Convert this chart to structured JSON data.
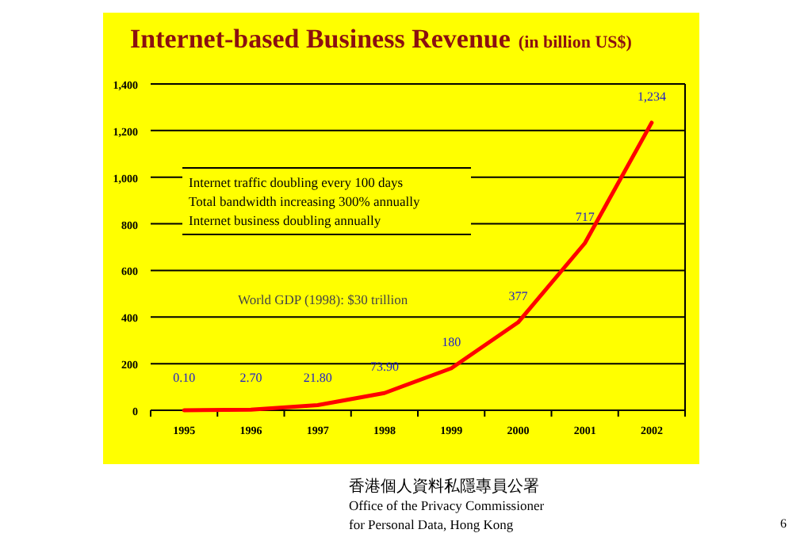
{
  "chart_data": {
    "type": "line",
    "title": "Internet-based Business Revenue",
    "subtitle": "(in billion US$)",
    "categories": [
      "1995",
      "1996",
      "1997",
      "1998",
      "1999",
      "2000",
      "2001",
      "2002"
    ],
    "series": [
      {
        "color": "#ff0000",
        "values": [
          0.1,
          2.7,
          21.8,
          73.9,
          180,
          377,
          717,
          1234
        ],
        "value_labels": [
          "0.10",
          "2.70",
          "21.80",
          "73.90",
          "180",
          "377",
          "717",
          "1,234"
        ]
      }
    ],
    "ylim": [
      0,
      1400
    ],
    "yticks": [
      0,
      200,
      400,
      600,
      800,
      {
        "value": 1000,
        "label": "1,000"
      },
      {
        "value": 1200,
        "label": "1,200"
      },
      {
        "value": 1400,
        "label": "1,400"
      }
    ],
    "grid": "y",
    "marker": "none",
    "line_style": "solid",
    "annotations": [
      "Internet traffic doubling every 100 days",
      "Total bandwidth increasing 300% annually",
      "Internet business doubling annually",
      "World GDP (1998): $30 trillion",
      "香港個人資料私隱專員公署",
      "Office of the Privacy Commissioner",
      "for Personal Data, Hong Kong",
      "6"
    ]
  }
}
